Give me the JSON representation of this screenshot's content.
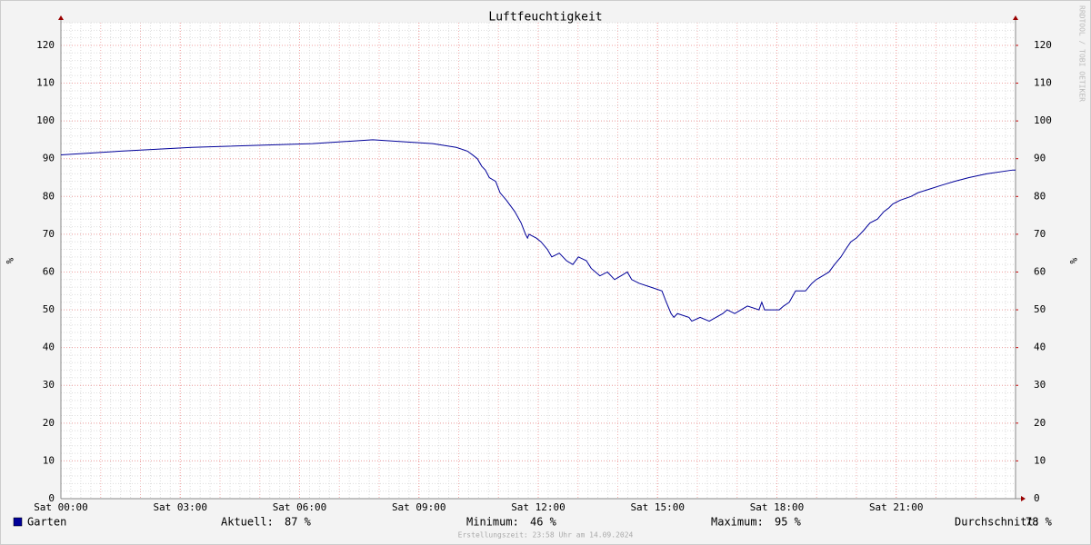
{
  "chart_data": {
    "type": "line",
    "title": "Luftfeuchtigkeit",
    "y_label": "%",
    "y2_label": "%",
    "watermark": "RRDTOOL / TOBI OETIKER",
    "footer": "Erstellungszeit: 23:58 Uhr am 14.09.2024",
    "xlim": [
      0,
      24
    ],
    "xticks": [
      {
        "value": 0,
        "label": "Sat 00:00"
      },
      {
        "value": 3,
        "label": "Sat 03:00"
      },
      {
        "value": 6,
        "label": "Sat 06:00"
      },
      {
        "value": 9,
        "label": "Sat 09:00"
      },
      {
        "value": 12,
        "label": "Sat 12:00"
      },
      {
        "value": 15,
        "label": "Sat 15:00"
      },
      {
        "value": 18,
        "label": "Sat 18:00"
      },
      {
        "value": 21,
        "label": "Sat 21:00"
      }
    ],
    "ylim": [
      0,
      126
    ],
    "yticks": [
      0,
      10,
      20,
      30,
      40,
      50,
      60,
      70,
      80,
      90,
      100,
      110,
      120
    ],
    "y2lim": [
      0,
      126
    ],
    "y2ticks": [
      0,
      10,
      20,
      30,
      40,
      50,
      60,
      70,
      80,
      90,
      100,
      110,
      120
    ],
    "grid": true,
    "x": [
      0,
      1.51,
      3.29,
      6.33,
      7.84,
      9.35,
      9.94,
      10.22,
      10.35,
      10.47,
      10.58,
      10.67,
      10.77,
      10.93,
      11.04,
      11.2,
      11.41,
      11.57,
      11.68,
      11.73,
      11.77,
      11.95,
      12.07,
      12.23,
      12.34,
      12.53,
      12.71,
      12.87,
      13.01,
      13.21,
      13.33,
      13.44,
      13.55,
      13.74,
      13.92,
      14.08,
      14.24,
      14.35,
      14.54,
      14.83,
      15.11,
      15.22,
      15.34,
      15.41,
      15.5,
      15.79,
      15.86,
      16.07,
      16.3,
      16.64,
      16.75,
      16.94,
      17.1,
      17.26,
      17.55,
      17.62,
      17.69,
      18.06,
      18.17,
      18.31,
      18.47,
      18.72,
      18.88,
      18.99,
      19.15,
      19.31,
      19.45,
      19.61,
      19.73,
      19.86,
      20,
      20.18,
      20.34,
      20.53,
      20.69,
      20.82,
      20.91,
      21.1,
      21.37,
      21.55,
      21.85,
      22.15,
      22.47,
      22.83,
      23.27,
      23.93,
      24
    ],
    "series": [
      {
        "name": "Garten",
        "color": "#000099",
        "values": [
          91,
          92,
          93,
          94,
          95,
          94,
          93,
          92,
          91,
          90,
          88,
          87,
          85,
          84,
          81,
          79,
          76,
          73,
          70,
          69,
          70,
          69,
          68,
          66,
          64,
          65,
          63,
          62,
          64,
          63,
          61,
          60,
          59,
          60,
          58,
          59,
          60,
          58,
          57,
          56,
          55,
          52,
          49,
          48,
          49,
          48,
          47,
          48,
          47,
          49,
          50,
          49,
          50,
          51,
          50,
          52,
          50,
          50,
          51,
          52,
          55,
          55,
          57,
          58,
          59,
          60,
          62,
          64,
          66,
          68,
          69,
          71,
          73,
          74,
          76,
          77,
          78,
          79,
          80,
          81,
          82,
          83,
          84,
          85,
          86,
          87,
          87
        ]
      }
    ],
    "stats": [
      {
        "name": "Aktuell:",
        "value": 87,
        "value_label": "87 %"
      },
      {
        "name": "Minimum:",
        "value": 46,
        "value_label": "46 %"
      },
      {
        "name": "Maximum:",
        "value": 95,
        "value_label": "95 %"
      },
      {
        "name": "Durchschnitt:",
        "value": 78,
        "value_label": "78 %"
      }
    ]
  }
}
